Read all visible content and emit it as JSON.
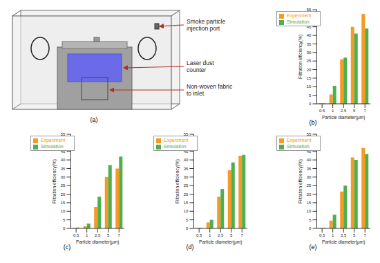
{
  "diagram": {
    "label": "(a)",
    "annotations": [
      "Smoke particle injection port",
      "Laser dust counter",
      "Non-woven fabric to inlet"
    ]
  },
  "chart_data": [
    {
      "type": "bar",
      "title": "(b)",
      "x_label": "Particle diameter(μm)",
      "y_label": "Filtration efficiency(%)",
      "categories": [
        "0.5",
        "1",
        "2.5",
        "5",
        "7"
      ],
      "series": [
        {
          "name": "Experiment",
          "color": "#f59a23",
          "values": [
            0.3,
            5.5,
            26,
            45,
            52.5
          ]
        },
        {
          "name": "Simulation",
          "color": "#4caf50",
          "values": [
            0.2,
            10.5,
            27,
            41,
            44
          ]
        }
      ],
      "ylim": [
        0,
        55
      ],
      "yticks": [
        0,
        5,
        10,
        15,
        20,
        25,
        30,
        35,
        40,
        45,
        50,
        55
      ],
      "legend": "upper left",
      "grid": false
    },
    {
      "type": "bar",
      "title": "(c)",
      "x_label": "Particle diameter(μm)",
      "y_label": "Filtration efficiency(%)",
      "categories": [
        "0.5",
        "1",
        "2.5",
        "5",
        "7"
      ],
      "series": [
        {
          "name": "Experiment",
          "color": "#f59a23",
          "values": [
            0.3,
            1.2,
            12.5,
            30,
            35
          ]
        },
        {
          "name": "Simulation",
          "color": "#4caf50",
          "values": [
            0.5,
            2.8,
            18.5,
            37,
            42
          ]
        }
      ],
      "ylim": [
        0,
        55
      ],
      "yticks": [
        0,
        5,
        10,
        15,
        20,
        25,
        30,
        35,
        40,
        45,
        50,
        55
      ],
      "legend": "upper left",
      "grid": false
    },
    {
      "type": "bar",
      "title": "(d)",
      "x_label": "Particle diameter(μm)",
      "y_label": "Filtration efficiency(%)",
      "categories": [
        "0.5",
        "1",
        "2.5",
        "5",
        "7"
      ],
      "series": [
        {
          "name": "Experiment",
          "color": "#f59a23",
          "values": [
            0.3,
            3.5,
            18.5,
            34,
            42.5
          ]
        },
        {
          "name": "Simulation",
          "color": "#4caf50",
          "values": [
            0.4,
            5,
            23,
            38.5,
            43
          ]
        }
      ],
      "ylim": [
        0,
        55
      ],
      "yticks": [
        0,
        5,
        10,
        15,
        20,
        25,
        30,
        35,
        40,
        45,
        50,
        55
      ],
      "legend": "upper left",
      "grid": false
    },
    {
      "type": "bar",
      "title": "(e)",
      "x_label": "Particle diameter(μm)",
      "y_label": "Filtration efficiency(%)",
      "categories": [
        "0.5",
        "1",
        "2.5",
        "5",
        "7"
      ],
      "series": [
        {
          "name": "Experiment",
          "color": "#f59a23",
          "values": [
            0.3,
            4.5,
            21.5,
            41.5,
            47
          ]
        },
        {
          "name": "Simulation",
          "color": "#4caf50",
          "values": [
            0.3,
            8,
            25,
            40,
            43.5
          ]
        }
      ],
      "ylim": [
        0,
        55
      ],
      "yticks": [
        0,
        5,
        10,
        15,
        20,
        25,
        30,
        35,
        40,
        45,
        50,
        55
      ],
      "legend": "upper left",
      "grid": false
    }
  ]
}
